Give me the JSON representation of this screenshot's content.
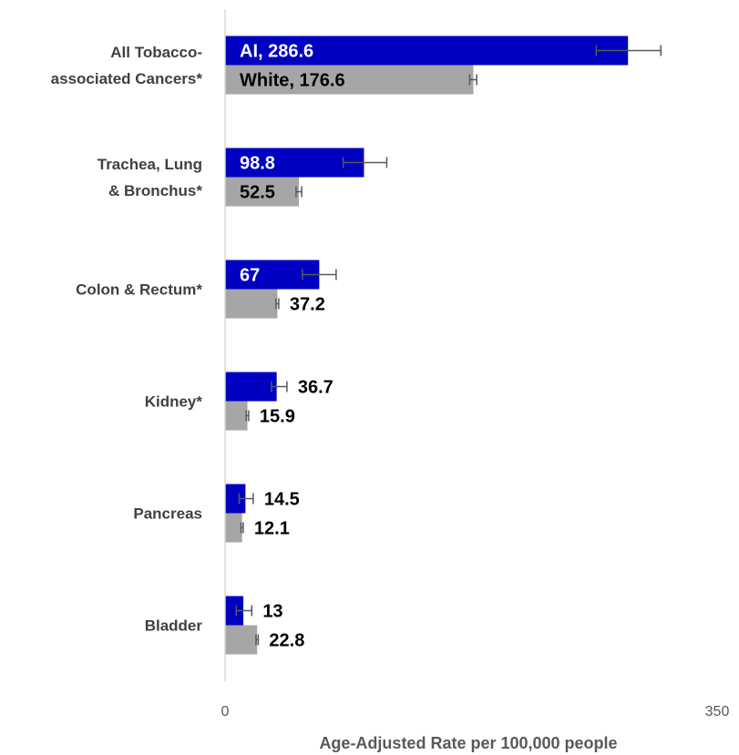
{
  "chart_data": {
    "type": "bar",
    "orientation": "horizontal",
    "categories": [
      "All Tobacco-associated Cancers*",
      "Trachea, Lung & Bronchus*",
      "Colon & Rectum*",
      "Kidney*",
      "Pancreas",
      "Bladder"
    ],
    "category_lines": [
      [
        "All Tobacco-",
        "associated Cancers*"
      ],
      [
        "Trachea, Lung",
        "& Bronchus*"
      ],
      [
        "Colon & Rectum*"
      ],
      [
        "Kidney*"
      ],
      [
        "Pancreas"
      ],
      [
        "Bladder"
      ]
    ],
    "series": [
      {
        "name": "AI",
        "color": "#0000c0",
        "values": [
          286.6,
          98.8,
          67,
          36.7,
          14.5,
          13
        ],
        "error_low": [
          264,
          84,
          55,
          33,
          10,
          8
        ],
        "error_high": [
          310,
          115,
          79,
          44,
          20,
          19
        ],
        "labels": [
          "AI, 286.6",
          "98.8",
          "67",
          "36.7",
          "14.5",
          "13"
        ]
      },
      {
        "name": "White",
        "color": "#a6a6a6",
        "values": [
          176.6,
          52.5,
          37.2,
          15.9,
          12.1,
          22.8
        ],
        "error_low": [
          174,
          50.5,
          36.2,
          15,
          11.3,
          22
        ],
        "error_high": [
          179,
          54.5,
          38.2,
          16.8,
          12.9,
          23.6
        ],
        "labels": [
          "White, 176.6",
          "52.5",
          "37.2",
          "15.9",
          "12.1",
          "22.8"
        ]
      }
    ],
    "title": "",
    "xlabel": "Age-Adjusted Rate per 100,000 people",
    "ylabel": "",
    "xlim": [
      0,
      350
    ],
    "tick_labels": [
      "0",
      "350"
    ],
    "grid": false,
    "legend": "none"
  }
}
